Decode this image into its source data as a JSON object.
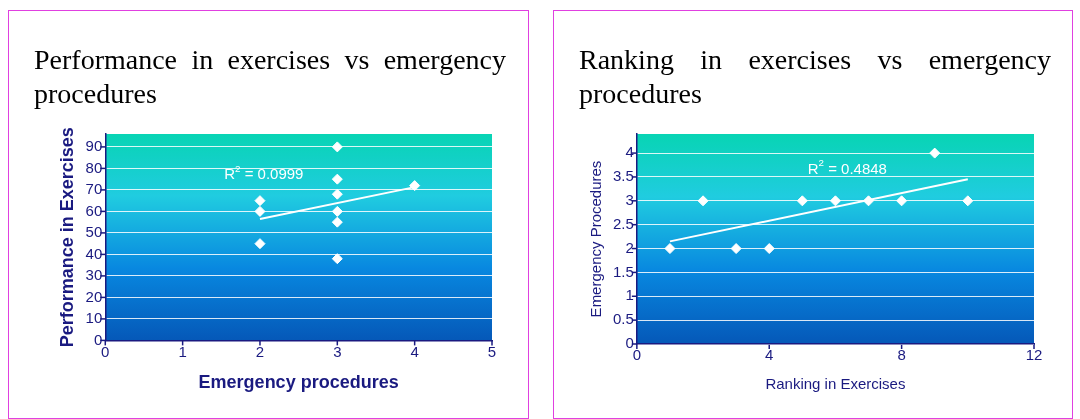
{
  "chart_data": [
    {
      "type": "scatter",
      "title": "Performance in exercises vs emergency procedures",
      "xlabel": "Emergency procedures",
      "ylabel": "Performance in Exercises",
      "xlim": [
        0,
        5
      ],
      "xticks": [
        0,
        1,
        2,
        3,
        4,
        5
      ],
      "ylim": [
        0,
        96
      ],
      "yticks": [
        0,
        10,
        20,
        30,
        40,
        50,
        60,
        70,
        80,
        90
      ],
      "grid": "y",
      "legend": false,
      "x": [
        2,
        2,
        2,
        3,
        3,
        3,
        3,
        3,
        3,
        4
      ],
      "series": [
        {
          "color": "#ffffff",
          "marker": "diamond",
          "values": [
            65,
            60,
            45,
            90,
            75,
            68,
            60,
            55,
            38,
            72
          ]
        },
        {
          "type": "line",
          "color": "#ffffff",
          "marker": "none",
          "x": [
            2,
            4
          ],
          "values": [
            56.5,
            71.3
          ]
        }
      ],
      "annotations": [
        "R$^{2}$ = 0.0999"
      ]
    },
    {
      "type": "scatter",
      "title": "Ranking in exercises vs emergency procedures",
      "xlabel": "Ranking in Exercises",
      "ylabel": "Emergency Procedures",
      "xlim": [
        0,
        12
      ],
      "xticks": [
        0,
        4,
        8,
        12
      ],
      "ylim": [
        0,
        4.4
      ],
      "yticks": [
        0,
        0.5,
        1,
        1.5,
        2,
        2.5,
        3,
        3.5,
        4
      ],
      "grid": "y",
      "legend": false,
      "x": [
        1,
        2,
        3,
        4,
        5,
        6,
        7,
        8,
        9,
        10
      ],
      "series": [
        {
          "color": "#ffffff",
          "marker": "diamond",
          "values": [
            2,
            3,
            2,
            2,
            3,
            3,
            3,
            3,
            4,
            3
          ]
        },
        {
          "type": "line",
          "color": "#ffffff",
          "marker": "none",
          "x": [
            1,
            10
          ],
          "values": [
            2.15,
            3.45
          ]
        }
      ],
      "annotations": [
        "R$^{2}$ = 0.4848"
      ]
    }
  ]
}
